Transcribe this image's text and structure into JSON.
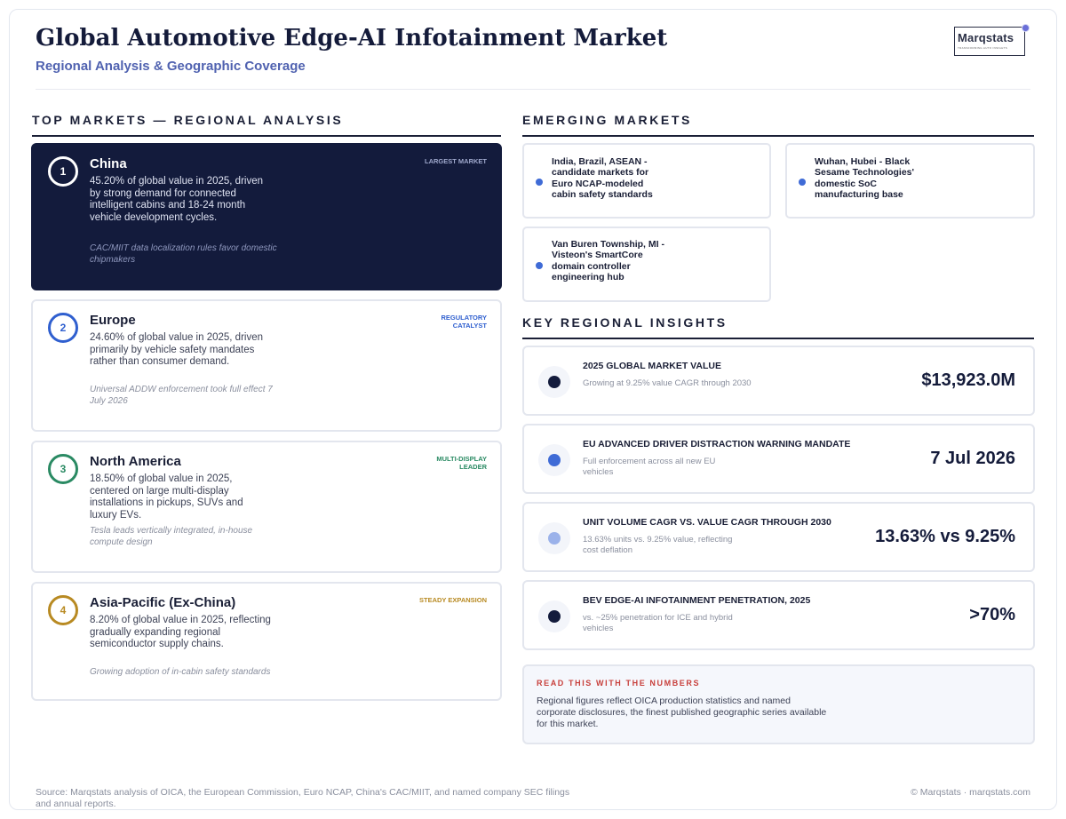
{
  "header": {
    "title": "Global Automotive Edge-AI Infotainment Market",
    "subtitle": "Regional Analysis & Geographic Coverage",
    "logo_text": "Marqstats",
    "logo_tagline": "TRANSFORMING AUTO INSIGHTS"
  },
  "top_markets": {
    "section_title": "TOP MARKETS — REGIONAL ANALYSIS",
    "items": [
      {
        "rank": "1",
        "name": "China",
        "description": "45.20% of global value in 2025, driven by strong demand for connected intelligent cabins and 18-24 month vehicle development cycles.",
        "note": "CAC/MIIT data localization rules favor domestic chipmakers",
        "tag": "LARGEST MARKET",
        "color": "#131b3c"
      },
      {
        "rank": "2",
        "name": "Europe",
        "description": "24.60% of global value in 2025, driven primarily by vehicle safety mandates rather than consumer demand.",
        "note": "Universal ADDW enforcement took full effect 7 July 2026",
        "tag": "REGULATORY CATALYST",
        "color": "#2f5fcf"
      },
      {
        "rank": "3",
        "name": "North America",
        "description": "18.50% of global value in 2025, centered on large multi-display installations in pickups, SUVs and luxury EVs.",
        "note": "Tesla leads vertically integrated, in-house compute design",
        "tag": "MULTI-DISPLAY LEADER",
        "color": "#2a8a63"
      },
      {
        "rank": "4",
        "name": "Asia-Pacific (Ex-China)",
        "description": "8.20% of global value in 2025, reflecting gradually expanding regional semiconductor supply chains.",
        "note": "Growing adoption of in-cabin safety standards",
        "tag": "STEADY EXPANSION",
        "color": "#b88a22"
      }
    ]
  },
  "emerging": {
    "section_title": "EMERGING MARKETS",
    "items": [
      "India, Brazil, ASEAN - candidate markets for Euro NCAP-modeled cabin safety standards",
      "Wuhan, Hubei - Black Sesame Technologies' domestic SoC manufacturing base",
      "Van Buren Township, MI - Visteon's SmartCore domain controller engineering hub"
    ],
    "dot_color": "#3f6bd6"
  },
  "insights": {
    "section_title": "KEY REGIONAL INSIGHTS",
    "items": [
      {
        "label": "2025 GLOBAL MARKET VALUE",
        "sub": "Growing at 9.25% value CAGR through 2030",
        "value": "$13,923.0M",
        "dot_color": "#131b3c"
      },
      {
        "label": "EU ADVANCED DRIVER DISTRACTION WARNING MANDATE",
        "sub": "Full enforcement across all new EU vehicles",
        "value": "7 Jul 2026",
        "dot_color": "#3f6bd6"
      },
      {
        "label": "UNIT VOLUME CAGR VS. VALUE CAGR THROUGH 2030",
        "sub": "13.63% units vs. 9.25% value, reflecting cost deflation",
        "value": "13.63% vs 9.25%",
        "dot_color": "#9bb2ea"
      },
      {
        "label": "BEV EDGE-AI INFOTAINMENT PENETRATION, 2025",
        "sub": "vs. ~25% penetration for ICE and hybrid vehicles",
        "value": ">70%",
        "dot_color": "#131b3c"
      }
    ]
  },
  "note": {
    "title": "READ THIS WITH THE NUMBERS",
    "text": "Regional figures reflect OICA production statistics and named corporate disclosures, the finest published geographic series available for this market."
  },
  "footer": {
    "source": "Source: Marqstats analysis of OICA, the European Commission, Euro NCAP, China's CAC/MIIT, and named company SEC filings and annual reports.",
    "copyright": "© Marqstats · marqstats.com"
  }
}
